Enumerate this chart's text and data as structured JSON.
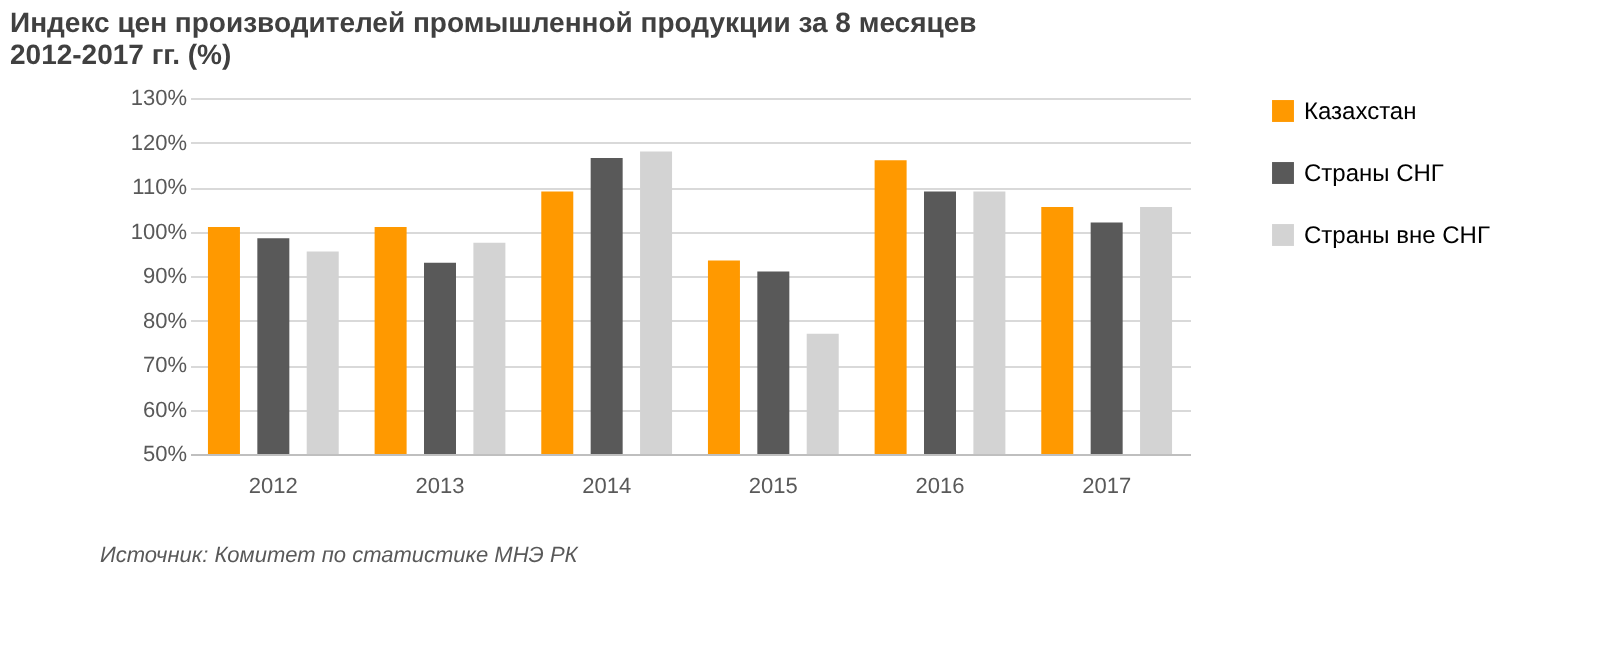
{
  "chart_data": {
    "type": "bar",
    "title": "Индекс цен производителей промышленной продукции за 8 месяцев\n2012-2017 гг. (%)",
    "categories": [
      "2012",
      "2013",
      "2014",
      "2015",
      "2016",
      "2017"
    ],
    "series": [
      {
        "name": "Казахстан",
        "color": "#ff9900",
        "values": [
          101,
          101,
          109,
          93.5,
          116,
          105.5
        ]
      },
      {
        "name": "Страны СНГ",
        "color": "#595959",
        "values": [
          98.5,
          93,
          116.5,
          91,
          109,
          102
        ]
      },
      {
        "name": "Страны вне СНГ",
        "color": "#d3d3d3",
        "values": [
          95.5,
          97.5,
          118,
          77,
          109,
          105.5
        ]
      }
    ],
    "ylim": [
      50,
      130
    ],
    "yticks": [
      {
        "value": 50,
        "label": "50%"
      },
      {
        "value": 60,
        "label": "60%"
      },
      {
        "value": 70,
        "label": "70%"
      },
      {
        "value": 80,
        "label": "80%"
      },
      {
        "value": 90,
        "label": "90%"
      },
      {
        "value": 100,
        "label": "100%"
      },
      {
        "value": 110,
        "label": "110%"
      },
      {
        "value": 120,
        "label": "120%"
      },
      {
        "value": 130,
        "label": "130%"
      }
    ],
    "grid": "y",
    "legend": "right",
    "annotations": [
      "Источник:  Комитет по статистике МНЭ РК"
    ]
  }
}
